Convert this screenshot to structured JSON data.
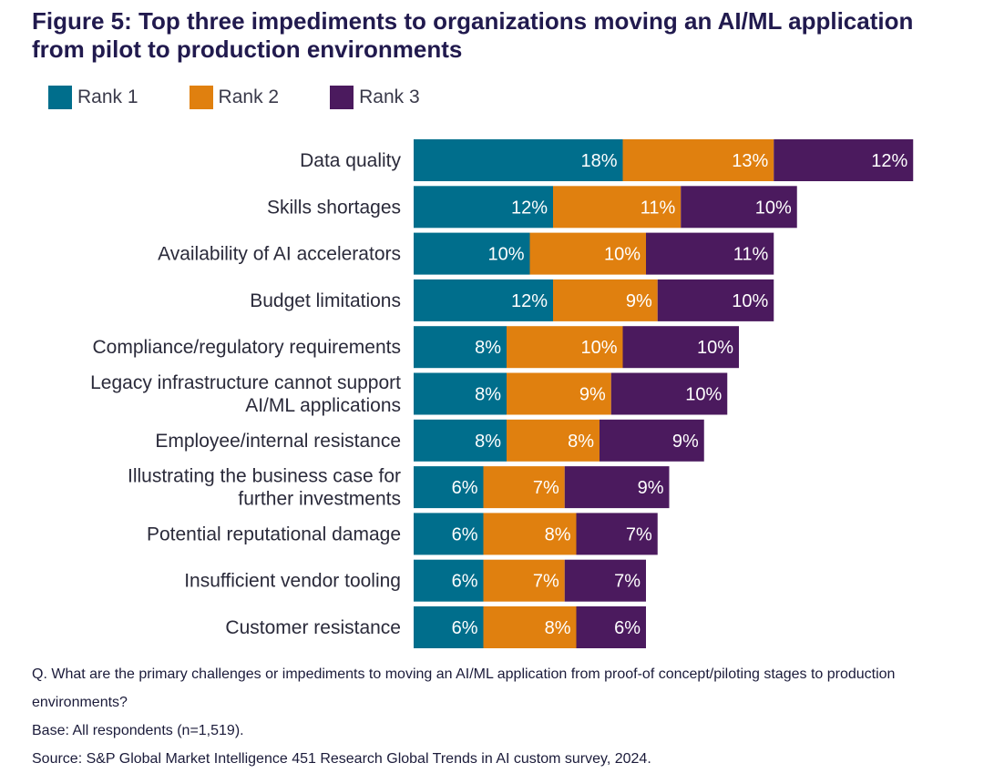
{
  "title": "Figure 5: Top three impediments to organizations moving an AI/ML application from pilot to production environments",
  "notes": {
    "question": "Q. What are the primary challenges or impediments to moving an AI/ML application from proof-of concept/piloting stages to production environments?",
    "base": "Base: All respondents (n=1,519).",
    "source": "Source: S&P Global Market Intelligence 451 Research Global Trends in AI custom survey, 2024."
  },
  "chart_data": {
    "type": "bar",
    "orientation": "horizontal",
    "stacked": true,
    "title": "Figure 5: Top three impediments to organizations moving an AI/ML application from pilot to production environments",
    "xlabel": "",
    "ylabel": "",
    "value_suffix": "%",
    "legend_position": "top-left",
    "categories": [
      [
        "Data quality"
      ],
      [
        "Skills shortages"
      ],
      [
        "Availability of AI accelerators"
      ],
      [
        "Budget limitations"
      ],
      [
        "Compliance/regulatory requirements"
      ],
      [
        "Legacy infrastructure cannot support",
        "AI/ML applications"
      ],
      [
        "Employee/internal resistance"
      ],
      [
        "Illustrating the business case for",
        "further investments"
      ],
      [
        "Potential reputational damage"
      ],
      [
        "Insufficient vendor tooling"
      ],
      [
        "Customer resistance"
      ]
    ],
    "series": [
      {
        "name": "Rank 1",
        "color": "#006e8c",
        "values": [
          18,
          12,
          10,
          12,
          8,
          8,
          8,
          6,
          6,
          6,
          6
        ]
      },
      {
        "name": "Rank 2",
        "color": "#e0800f",
        "values": [
          13,
          11,
          10,
          9,
          10,
          9,
          8,
          7,
          8,
          7,
          8
        ]
      },
      {
        "name": "Rank 3",
        "color": "#4b1a5e",
        "values": [
          12,
          10,
          11,
          10,
          10,
          10,
          9,
          9,
          7,
          7,
          6
        ]
      }
    ]
  }
}
